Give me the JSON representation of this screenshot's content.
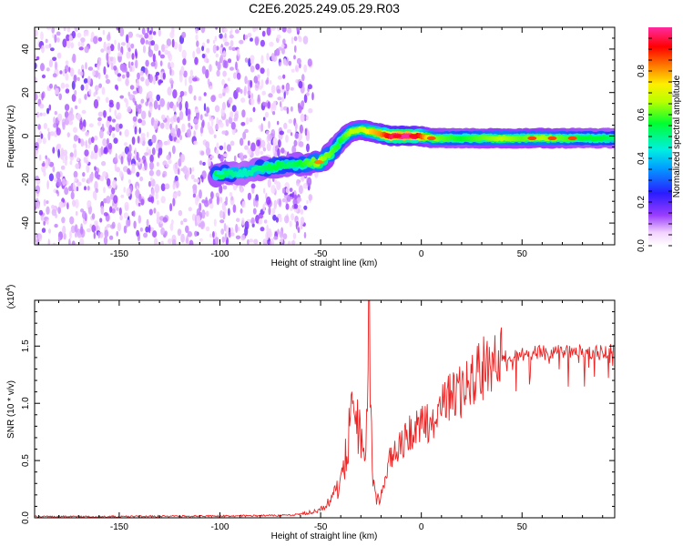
{
  "title": "C2E6.2025.249.05.29.R03",
  "chart_data": [
    {
      "type": "heatmap",
      "xlabel": "Height of straight line (km)",
      "ylabel": "Frequency (Hz)",
      "xlim": [
        -192,
        96
      ],
      "ylim": [
        -50,
        50
      ],
      "x_ticks": [
        -150,
        -100,
        -50,
        0,
        50
      ],
      "y_ticks": [
        -40,
        -20,
        0,
        20,
        40
      ],
      "colorbar": {
        "label": "Normalized spectral amplitude",
        "range": [
          0,
          1
        ],
        "ticks": [
          0.0,
          0.2,
          0.4,
          0.6,
          0.8
        ],
        "tick_labels": [
          "0.0",
          "0.2",
          "0.4",
          "0.6",
          "0.8"
        ],
        "colormap": "rainbow (white → purple → blue → cyan → green → yellow → red → magenta)"
      },
      "noise_region": {
        "x_from": -192,
        "x_to": -55,
        "level": 0.15
      },
      "signal_track": {
        "description": "frequency (Hz) of strongest spectral line vs height (km)",
        "x": [
          -102,
          -95,
          -88,
          -80,
          -72,
          -65,
          -60,
          -55,
          -50,
          -45,
          -40,
          -35,
          -30,
          -25,
          -20,
          -15,
          -10,
          -5,
          0,
          5,
          10,
          20,
          30,
          40,
          50,
          60,
          70,
          80,
          90,
          96
        ],
        "freq": [
          -18,
          -17,
          -17,
          -15,
          -14,
          -13,
          -13,
          -12,
          -12,
          -8,
          -2,
          2,
          3,
          2,
          1,
          0,
          0,
          0,
          0,
          -1,
          -1,
          -1,
          -1,
          -1,
          -1,
          -1,
          -1,
          -1,
          -1,
          -1
        ],
        "amplitude": [
          0.5,
          0.45,
          0.4,
          0.45,
          0.5,
          0.45,
          0.5,
          0.55,
          0.6,
          0.55,
          0.5,
          0.6,
          0.6,
          0.7,
          0.75,
          0.9,
          0.95,
          0.95,
          0.8,
          0.6,
          0.55,
          0.5,
          0.55,
          0.6,
          0.55,
          0.6,
          0.55,
          0.5,
          0.5,
          0.45
        ]
      }
    },
    {
      "type": "line",
      "xlabel": "Height of straight line (km)",
      "ylabel": "SNR (10 * v/v)",
      "y_multiplier": "(x10^4)",
      "xlim": [
        -192,
        96
      ],
      "ylim": [
        0,
        1.9
      ],
      "x_ticks": [
        -150,
        -100,
        -50,
        0,
        50
      ],
      "y_ticks": [
        0.0,
        0.5,
        1.0,
        1.5
      ],
      "y_tick_labels": [
        "0.0",
        "0.5",
        "1.0",
        "1.5"
      ],
      "color": "#ee2222",
      "series": [
        {
          "x": [
            -192,
            -150,
            -100,
            -70,
            -60,
            -50,
            -45,
            -40,
            -37,
            -35,
            -32,
            -30,
            -28,
            -27,
            -26,
            -25,
            -24,
            -22,
            -20,
            -18,
            -15,
            -10,
            -5,
            0,
            5,
            10,
            15,
            20,
            25,
            30,
            35,
            40,
            50,
            60,
            70,
            80,
            90,
            96
          ],
          "values": [
            0.01,
            0.01,
            0.015,
            0.02,
            0.03,
            0.07,
            0.15,
            0.3,
            0.6,
            0.85,
            0.9,
            0.7,
            0.5,
            1.1,
            1.9,
            0.8,
            0.3,
            0.15,
            0.2,
            0.35,
            0.55,
            0.65,
            0.75,
            0.8,
            0.85,
            0.95,
            1.05,
            1.1,
            1.2,
            1.3,
            1.35,
            1.4,
            1.43,
            1.45,
            1.45,
            1.45,
            1.45,
            1.47
          ]
        }
      ]
    }
  ]
}
